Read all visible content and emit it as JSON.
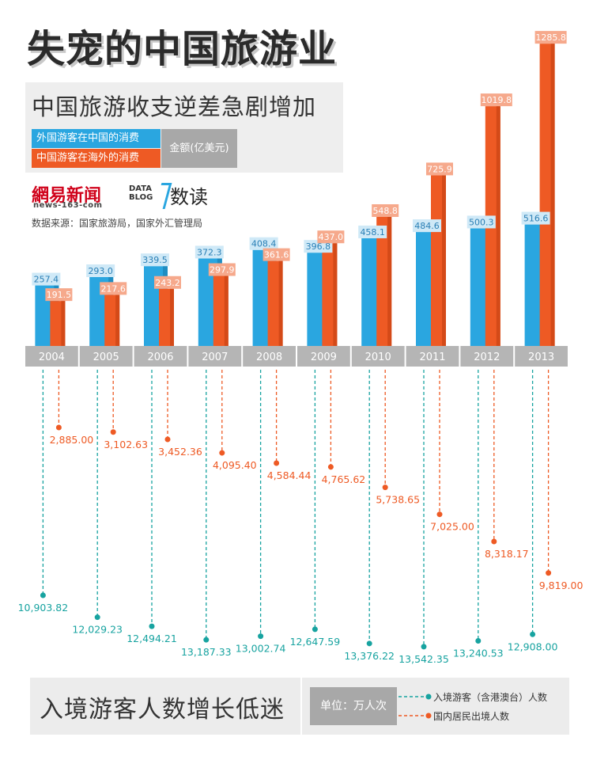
{
  "title": "失宠的中国旅游业",
  "subtitle": "中国旅游收支逆差急剧增加",
  "legend": {
    "inbound_spending": "外国游客在中国的消费",
    "outbound_spending": "中国游客在海外的消费",
    "unit": "金额(亿美元)"
  },
  "logos": {
    "netease_name": "網易新闻",
    "netease_sub": "news-163-com",
    "datablog": "DATA BLOG",
    "shudu": "数读"
  },
  "source": "数据来源：国家旅游局，国家外汇管理局",
  "bottom": {
    "title": "入境游客人数增长低迷",
    "unit": "单位：万人次",
    "legend_inbound": "入境游客（含港澳台）人数",
    "legend_outbound": "国内居民出境人数"
  },
  "colors": {
    "blue": "#2aa6e0",
    "orange": "#ee5a24",
    "teal": "#17a3a0",
    "year_bar": "#b5b5b5"
  },
  "chart_data": [
    {
      "type": "bar",
      "categories": [
        "2004",
        "2005",
        "2006",
        "2007",
        "2008",
        "2009",
        "2010",
        "2011",
        "2012",
        "2013"
      ],
      "series": [
        {
          "name": "外国游客在中国的消费",
          "values": [
            257.4,
            293.0,
            339.5,
            372.3,
            408.4,
            396.8,
            458.1,
            484.6,
            500.3,
            516.6
          ],
          "labels": [
            "257.4",
            "293.0",
            "339.5",
            "372.3",
            "408.4",
            "396.8",
            "458.1",
            "484.6",
            "500.3",
            "516.6"
          ]
        },
        {
          "name": "中国游客在海外的消费",
          "values": [
            191.5,
            217.6,
            243.2,
            297.9,
            361.6,
            437.0,
            548.8,
            725.9,
            1019.8,
            1285.8
          ],
          "labels": [
            "191.5",
            "217.6",
            "243.2",
            "297.9",
            "361.6",
            "437.0",
            "548.8",
            "725.9",
            "1019.8",
            "1285.8"
          ]
        }
      ],
      "ylabel": "金额(亿美元)"
    },
    {
      "type": "scatter",
      "categories": [
        "2004",
        "2005",
        "2006",
        "2007",
        "2008",
        "2009",
        "2010",
        "2011",
        "2012",
        "2013"
      ],
      "series": [
        {
          "name": "入境游客（含港澳台）人数",
          "values": [
            10903.82,
            12029.23,
            12494.21,
            13187.33,
            13002.74,
            12647.59,
            13376.22,
            13542.35,
            13240.53,
            12908.0
          ],
          "labels": [
            "10,903.82",
            "12,029.23",
            "12,494.21",
            "13,187.33",
            "13,002.74",
            "12,647.59",
            "13,376.22",
            "13,542.35",
            "13,240.53",
            "12,908.00"
          ]
        },
        {
          "name": "国内居民出境人数",
          "values": [
            2885.0,
            3102.63,
            3452.36,
            4095.4,
            4584.44,
            4765.62,
            5738.65,
            7025.0,
            8318.17,
            9819.0
          ],
          "labels": [
            "2,885.00",
            "3,102.63",
            "3,452.36",
            "4,095.40",
            "4,584.44",
            "4,765.62",
            "5,738.65",
            "7,025.00",
            "8,318.17",
            "9,819.00"
          ]
        }
      ],
      "ylabel": "万人次"
    }
  ]
}
